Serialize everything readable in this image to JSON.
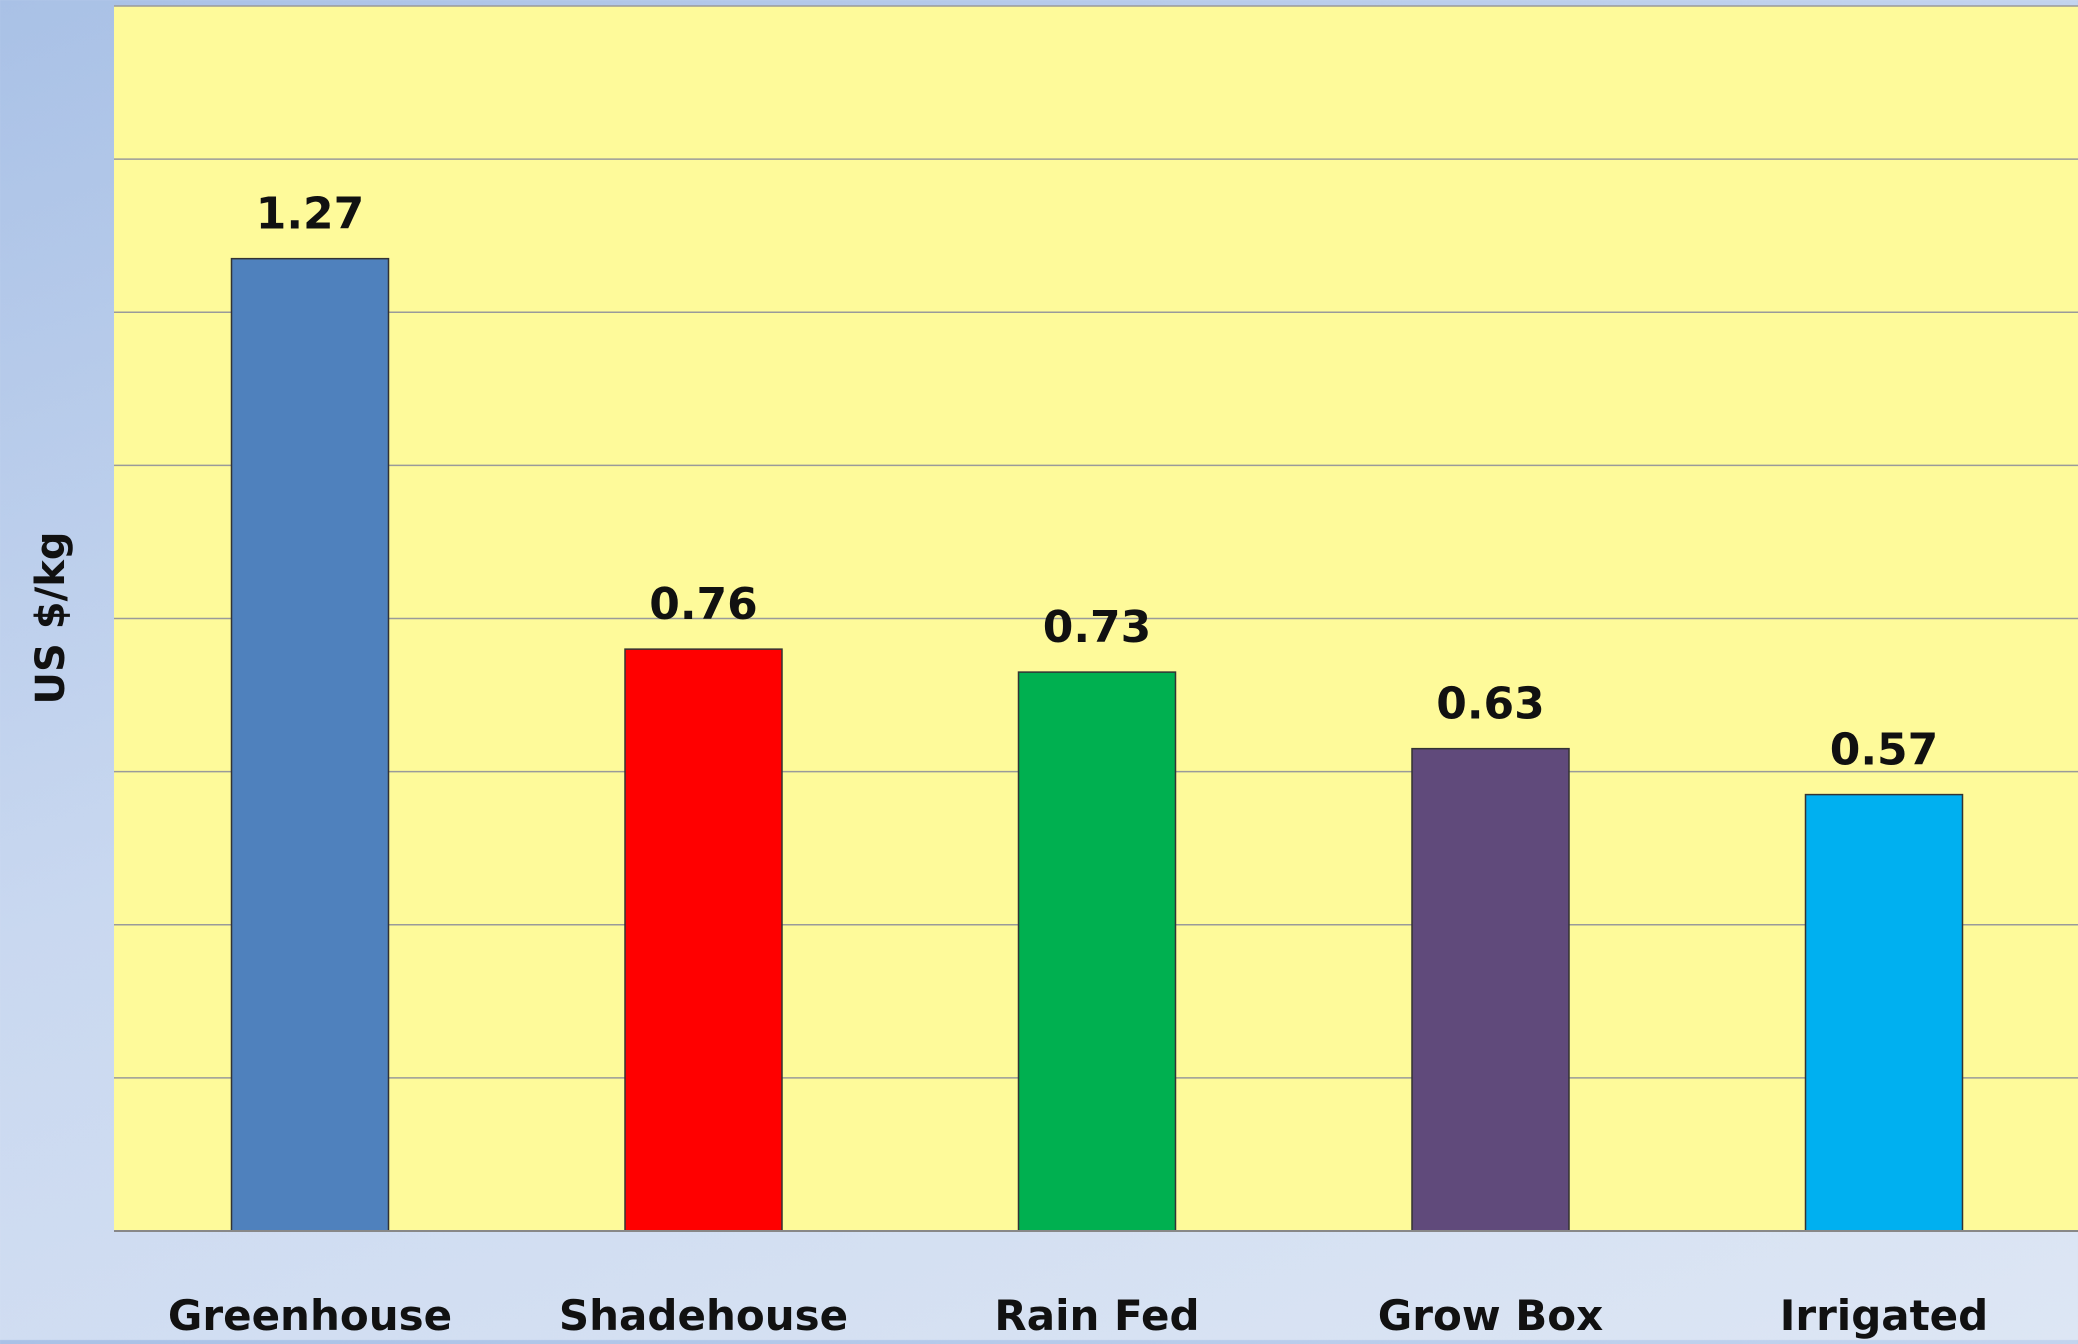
{
  "chart_data": {
    "type": "bar",
    "categories": [
      "Greenhouse",
      "Shadehouse",
      "Rain Fed",
      "Grow Box",
      "Irrigated"
    ],
    "values": [
      1.27,
      0.76,
      0.73,
      0.63,
      0.57
    ],
    "data_labels": [
      "1.27",
      "0.76",
      "0.73",
      "0.63",
      "0.57"
    ],
    "ylabel": "US $/kg",
    "xlabel": "",
    "ylim": [
      0,
      1.6
    ],
    "grid": true,
    "gridline_step": 0.2,
    "tick_labels_shown": false,
    "colors": [
      "#4f81bd",
      "#ff0000",
      "#00b050",
      "#604a7b",
      "#00b0f0"
    ],
    "plot_background": "#fefa9a"
  }
}
